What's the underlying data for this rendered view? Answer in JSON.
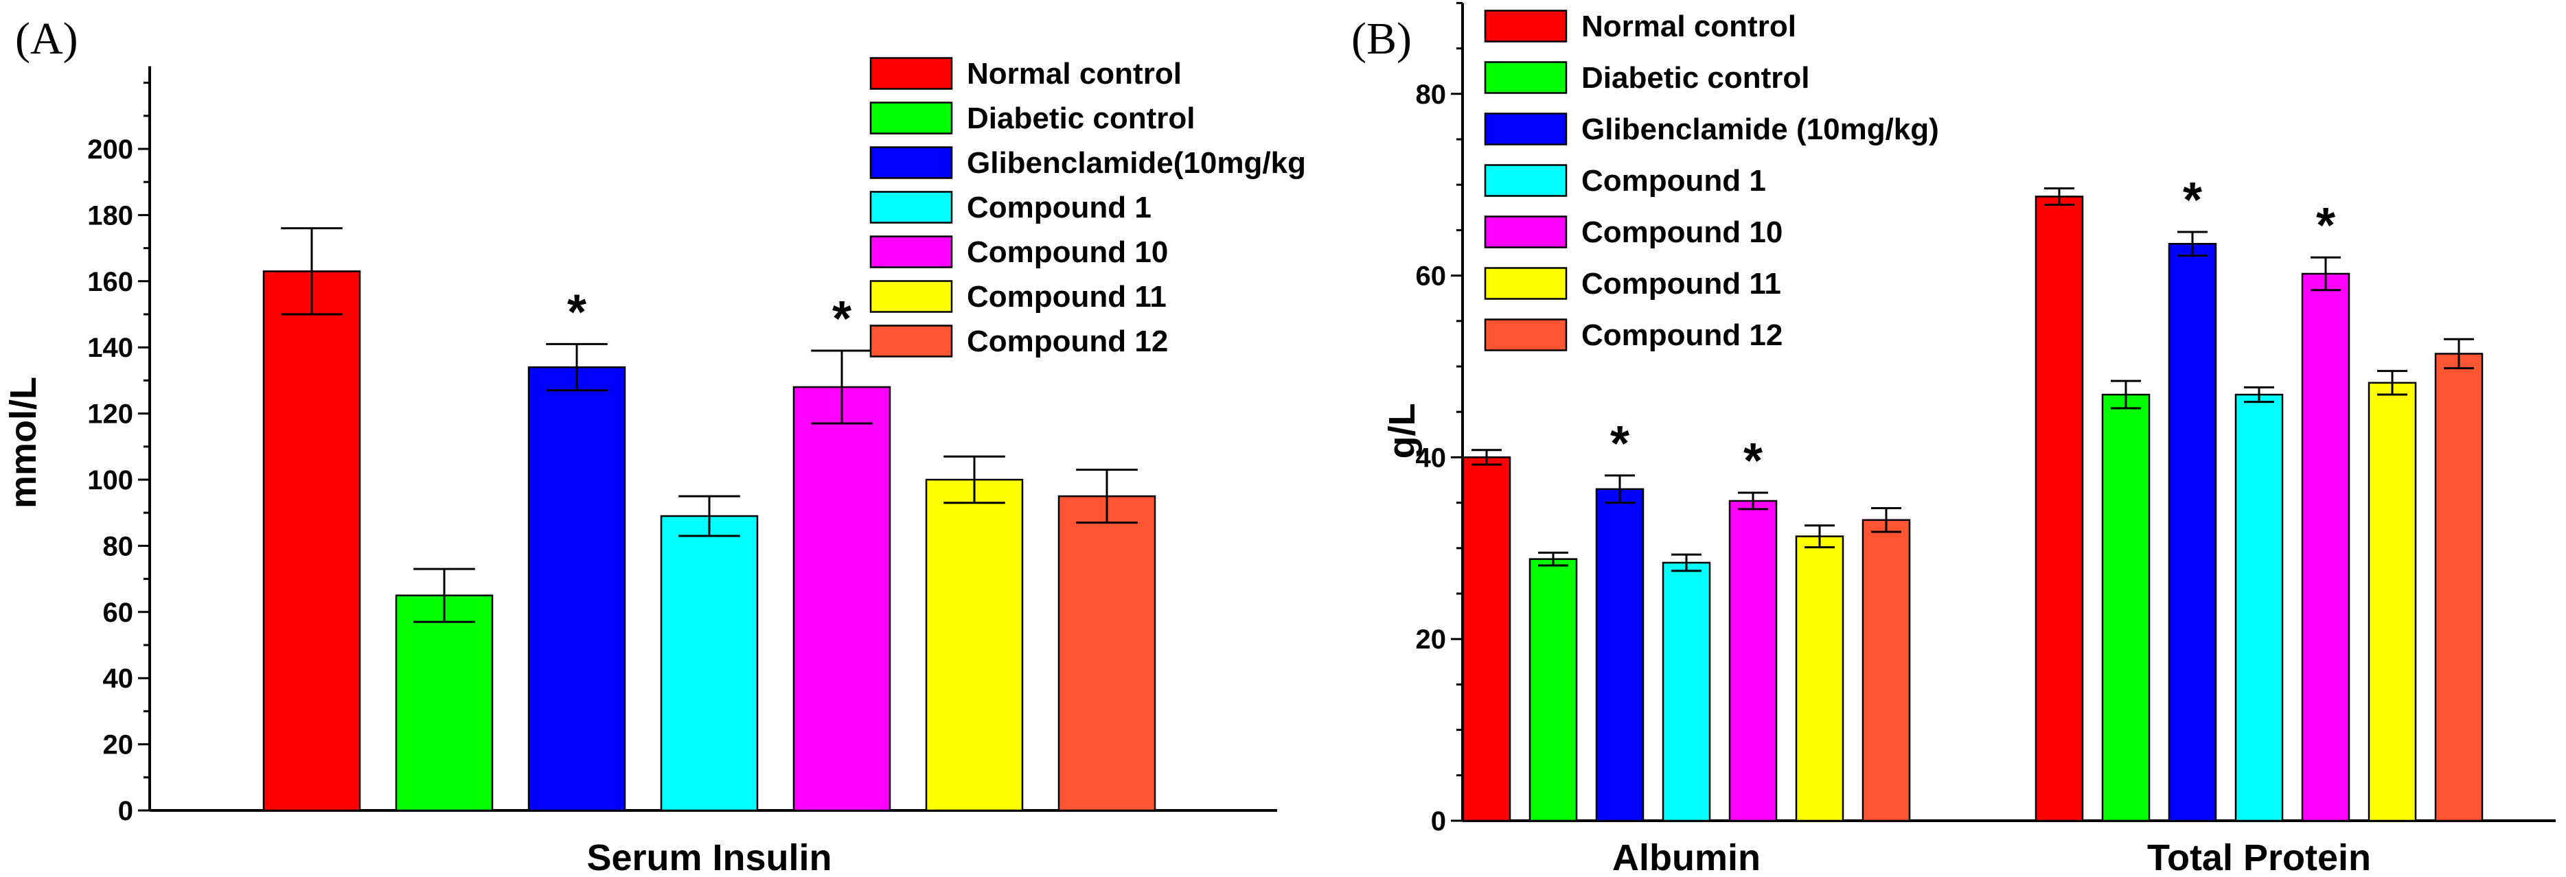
{
  "chart_data": [
    {
      "type": "bar",
      "panel_label": "(A)",
      "title": "",
      "xlabel": "Serum Insulin",
      "ylabel": "mmol/L",
      "ylim": [
        0,
        220
      ],
      "y_ticks": [
        0,
        20,
        40,
        60,
        80,
        100,
        120,
        140,
        160,
        180,
        200
      ],
      "y_tick_labels": [
        "0",
        "20",
        "40",
        "60",
        "80",
        "100",
        "120",
        "140",
        "160",
        "180",
        "200"
      ],
      "categories": [
        "Serum Insulin"
      ],
      "grid": false,
      "legend_position": "top-right",
      "series": [
        {
          "name": "Normal control",
          "color": "#ff0000",
          "values": [
            163
          ],
          "errors": [
            13
          ],
          "significant": [
            false
          ]
        },
        {
          "name": "Diabetic control",
          "color": "#00ff00",
          "values": [
            65
          ],
          "errors": [
            8
          ],
          "significant": [
            false
          ]
        },
        {
          "name": "Glibenclamide(10mg/kg",
          "color": "#0000ff",
          "values": [
            134
          ],
          "errors": [
            7
          ],
          "significant": [
            true
          ]
        },
        {
          "name": "Compound 1",
          "color": "#00ffff",
          "values": [
            89
          ],
          "errors": [
            6
          ],
          "significant": [
            false
          ]
        },
        {
          "name": "Compound 10",
          "color": "#ff00ff",
          "values": [
            128
          ],
          "errors": [
            11
          ],
          "significant": [
            true
          ]
        },
        {
          "name": "Compound 11",
          "color": "#ffff00",
          "values": [
            100
          ],
          "errors": [
            7
          ],
          "significant": [
            false
          ]
        },
        {
          "name": "Compound 12",
          "color": "#ff5533",
          "values": [
            95
          ],
          "errors": [
            8
          ],
          "significant": [
            false
          ]
        }
      ],
      "significance_marker": "*"
    },
    {
      "type": "bar",
      "panel_label": "(B)",
      "title": "",
      "xlabel": "",
      "ylabel": "g/L",
      "ylim": [
        0,
        90
      ],
      "y_ticks": [
        0,
        20,
        40,
        60,
        80
      ],
      "y_tick_labels": [
        "0",
        "20",
        "40",
        "60",
        "80"
      ],
      "categories": [
        "Albumin",
        "Total Protein"
      ],
      "grid": false,
      "legend_position": "top-left",
      "series": [
        {
          "name": "Normal control",
          "color": "#ff0000",
          "values": [
            40,
            68.7
          ],
          "errors": [
            0.8,
            0.9
          ],
          "significant": [
            false,
            false
          ]
        },
        {
          "name": "Diabetic control",
          "color": "#00ff00",
          "values": [
            28.8,
            46.9
          ],
          "errors": [
            0.7,
            1.5
          ],
          "significant": [
            false,
            false
          ]
        },
        {
          "name": "Glibenclamide (10mg/kg)",
          "color": "#0000ff",
          "values": [
            36.5,
            63.5
          ],
          "errors": [
            1.5,
            1.3
          ],
          "significant": [
            true,
            true
          ]
        },
        {
          "name": "Compound 1",
          "color": "#00ffff",
          "values": [
            28.4,
            46.9
          ],
          "errors": [
            0.9,
            0.8
          ],
          "significant": [
            false,
            false
          ]
        },
        {
          "name": "Compound 10",
          "color": "#ff00ff",
          "values": [
            35.2,
            60.2
          ],
          "errors": [
            0.9,
            1.8
          ],
          "significant": [
            true,
            true
          ]
        },
        {
          "name": "Compound 11",
          "color": "#ffff00",
          "values": [
            31.3,
            48.2
          ],
          "errors": [
            1.2,
            1.3
          ],
          "significant": [
            false,
            false
          ]
        },
        {
          "name": "Compound 12",
          "color": "#ff5533",
          "values": [
            33.1,
            51.4
          ],
          "errors": [
            1.3,
            1.6
          ],
          "significant": [
            false,
            false
          ]
        }
      ],
      "significance_marker": "*"
    }
  ]
}
